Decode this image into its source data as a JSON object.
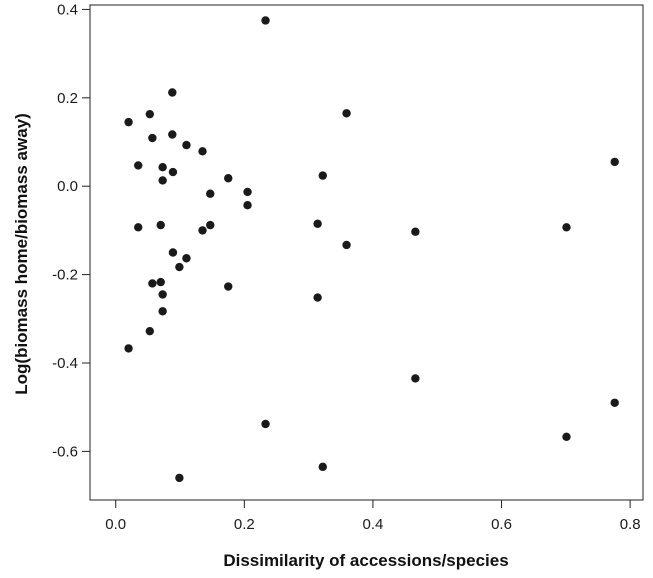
{
  "chart_data": {
    "type": "scatter",
    "xlabel": "Dissimilarity of accessions/species",
    "ylabel": "Log(biomass home/biomass away)",
    "xlim": [
      -0.04,
      0.82
    ],
    "ylim": [
      -0.71,
      0.41
    ],
    "x_ticks": [
      0.0,
      0.2,
      0.4,
      0.6,
      0.8
    ],
    "x_tick_labels": [
      "0.0",
      "0.2",
      "0.4",
      "0.6",
      "0.8"
    ],
    "y_ticks": [
      -0.6,
      -0.4,
      -0.2,
      0.0,
      0.2,
      0.4
    ],
    "y_tick_labels": [
      "-0.6",
      "-0.4",
      "-0.2",
      "0.0",
      "0.2",
      "0.4"
    ],
    "grid": false,
    "point_color": "#1a1a1a",
    "points": [
      {
        "x": 0.233,
        "y": 0.375
      },
      {
        "x": 0.088,
        "y": 0.212
      },
      {
        "x": 0.359,
        "y": 0.165
      },
      {
        "x": 0.053,
        "y": 0.163
      },
      {
        "x": 0.02,
        "y": 0.145
      },
      {
        "x": 0.088,
        "y": 0.117
      },
      {
        "x": 0.057,
        "y": 0.109
      },
      {
        "x": 0.11,
        "y": 0.093
      },
      {
        "x": 0.135,
        "y": 0.079
      },
      {
        "x": 0.776,
        "y": 0.055
      },
      {
        "x": 0.035,
        "y": 0.047
      },
      {
        "x": 0.073,
        "y": 0.043
      },
      {
        "x": 0.089,
        "y": 0.032
      },
      {
        "x": 0.322,
        "y": 0.024
      },
      {
        "x": 0.175,
        "y": 0.018
      },
      {
        "x": 0.073,
        "y": 0.013
      },
      {
        "x": 0.205,
        "y": -0.013
      },
      {
        "x": 0.147,
        "y": -0.017
      },
      {
        "x": 0.205,
        "y": -0.043
      },
      {
        "x": 0.314,
        "y": -0.085
      },
      {
        "x": 0.07,
        "y": -0.088
      },
      {
        "x": 0.147,
        "y": -0.088
      },
      {
        "x": 0.035,
        "y": -0.093
      },
      {
        "x": 0.701,
        "y": -0.093
      },
      {
        "x": 0.135,
        "y": -0.1
      },
      {
        "x": 0.466,
        "y": -0.103
      },
      {
        "x": 0.359,
        "y": -0.133
      },
      {
        "x": 0.089,
        "y": -0.15
      },
      {
        "x": 0.11,
        "y": -0.163
      },
      {
        "x": 0.099,
        "y": -0.183
      },
      {
        "x": 0.057,
        "y": -0.22
      },
      {
        "x": 0.07,
        "y": -0.217
      },
      {
        "x": 0.175,
        "y": -0.227
      },
      {
        "x": 0.073,
        "y": -0.245
      },
      {
        "x": 0.314,
        "y": -0.252
      },
      {
        "x": 0.073,
        "y": -0.283
      },
      {
        "x": 0.053,
        "y": -0.328
      },
      {
        "x": 0.02,
        "y": -0.367
      },
      {
        "x": 0.466,
        "y": -0.435
      },
      {
        "x": 0.776,
        "y": -0.49
      },
      {
        "x": 0.233,
        "y": -0.538
      },
      {
        "x": 0.701,
        "y": -0.567
      },
      {
        "x": 0.322,
        "y": -0.635
      },
      {
        "x": 0.099,
        "y": -0.66
      }
    ]
  }
}
